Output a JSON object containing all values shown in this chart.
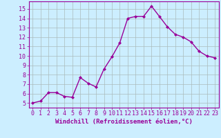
{
  "x": [
    0,
    1,
    2,
    3,
    4,
    5,
    6,
    7,
    8,
    9,
    10,
    11,
    12,
    13,
    14,
    15,
    16,
    17,
    18,
    19,
    20,
    21,
    22,
    23
  ],
  "y": [
    5.0,
    5.2,
    6.1,
    6.1,
    5.7,
    5.6,
    7.7,
    7.1,
    6.7,
    8.6,
    9.9,
    11.4,
    14.0,
    14.2,
    14.2,
    15.3,
    14.2,
    13.1,
    12.3,
    12.0,
    11.5,
    10.5,
    10.0,
    9.8
  ],
  "line_color": "#990099",
  "marker": "D",
  "markersize": 2.0,
  "linewidth": 1.0,
  "bg_color": "#cceeff",
  "grid_color": "#aabbbb",
  "xlabel": "Windchill (Refroidissement éolien,°C)",
  "xlim": [
    -0.5,
    23.5
  ],
  "ylim": [
    4.5,
    15.8
  ],
  "yticks": [
    5,
    6,
    7,
    8,
    9,
    10,
    11,
    12,
    13,
    14,
    15
  ],
  "xticks": [
    0,
    1,
    2,
    3,
    4,
    5,
    6,
    7,
    8,
    9,
    10,
    11,
    12,
    13,
    14,
    15,
    16,
    17,
    18,
    19,
    20,
    21,
    22,
    23
  ],
  "label_fontsize": 6.5,
  "tick_fontsize": 6.0
}
